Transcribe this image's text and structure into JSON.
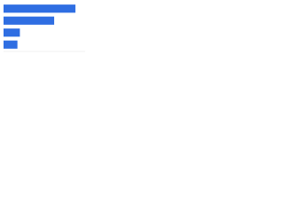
{
  "chart_data": {
    "type": "bar",
    "orientation": "horizontal",
    "categories": [
      null,
      null,
      null,
      null
    ],
    "values": [
      88,
      62,
      20,
      17
    ],
    "color": "#2f6ee2",
    "xlim": [
      0,
      100
    ]
  }
}
